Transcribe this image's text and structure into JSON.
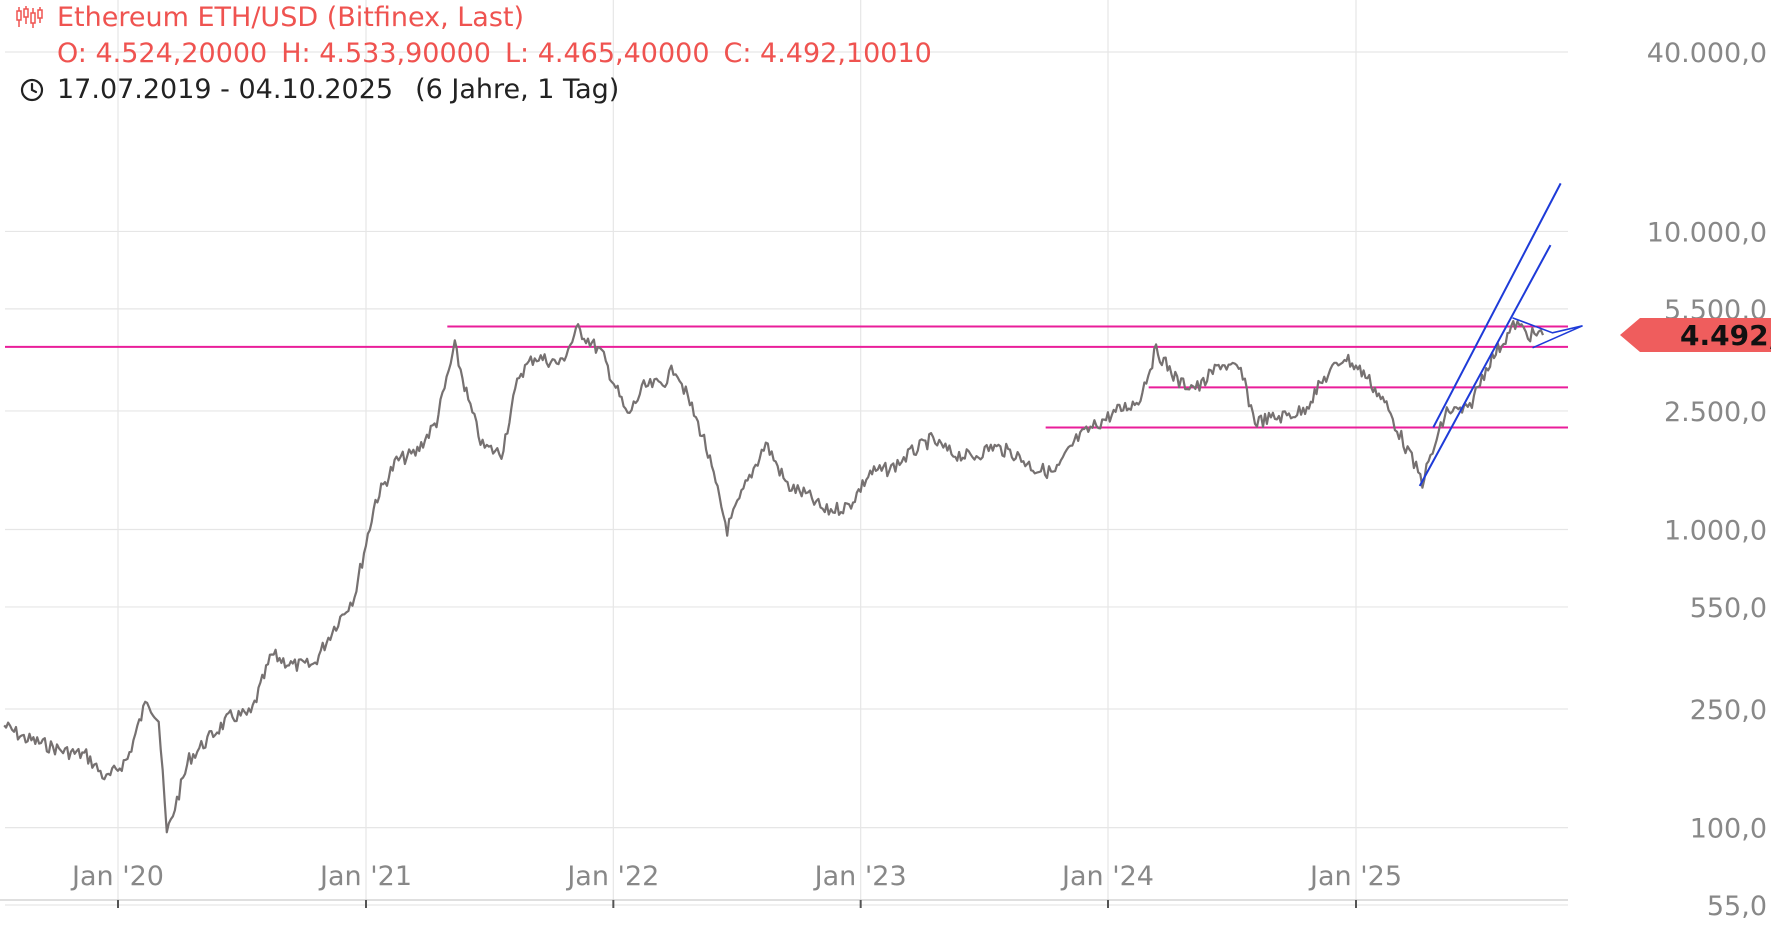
{
  "header": {
    "title": "Ethereum ETH/USD (Bitfinex, Last)",
    "ohlc": {
      "open": "O: 4.524,20000",
      "high": "H: 4.533,90000",
      "low": "L: 4.465,40000",
      "close": "C: 4.492,10010"
    },
    "date_range": "17.07.2019 - 04.10.2025",
    "period": "(6 Jahre, 1 Tag)",
    "candle_icon": "candlestick-icon",
    "clock_icon": "clock-icon"
  },
  "colors": {
    "price": "#767171",
    "header_text": "#ef5350",
    "support_resistance": "#e91e9a",
    "trend_channel": "#1e3bd8",
    "last_price_badge": "#ef5d5d",
    "grid": "#e6e6e6",
    "axis_text": "#888888"
  },
  "chart_data": {
    "type": "line",
    "title": "Ethereum ETH/USD (Bitfinex, Last)",
    "y_scale": "log",
    "ylim": [
      55,
      40000
    ],
    "xlim": [
      "2019-07-17",
      "2025-10-04"
    ],
    "grid": true,
    "y_ticks": [
      {
        "value": 40000,
        "label": "40.000,0"
      },
      {
        "value": 10000,
        "label": "10.000,0"
      },
      {
        "value": 5500,
        "label": "5.500,0"
      },
      {
        "value": 2500,
        "label": "2.500,0"
      },
      {
        "value": 1000,
        "label": "1.000,0"
      },
      {
        "value": 550,
        "label": "550,0"
      },
      {
        "value": 250,
        "label": "250,0"
      },
      {
        "value": 100,
        "label": "100,0"
      },
      {
        "value": 55,
        "label": "55,0"
      }
    ],
    "x_ticks": [
      {
        "date": "2020-01-01",
        "label": "Jan '20"
      },
      {
        "date": "2021-01-01",
        "label": "Jan '21"
      },
      {
        "date": "2022-01-01",
        "label": "Jan '22"
      },
      {
        "date": "2023-01-01",
        "label": "Jan '23"
      },
      {
        "date": "2024-01-01",
        "label": "Jan '24"
      },
      {
        "date": "2025-01-01",
        "label": "Jan '25"
      }
    ],
    "last_price": {
      "value": 4492.1,
      "label": "4.492,1"
    },
    "series": [
      {
        "x": [
          "2019-07-17",
          "2019-08-15",
          "2019-09-15",
          "2019-10-15",
          "2019-11-15",
          "2019-12-15",
          "2020-01-15",
          "2020-02-13",
          "2020-03-01",
          "2020-03-13",
          "2020-04-15",
          "2020-05-15",
          "2020-06-15",
          "2020-07-15",
          "2020-08-15",
          "2020-09-15",
          "2020-10-15",
          "2020-11-15",
          "2020-12-15",
          "2021-01-15",
          "2021-02-15",
          "2021-03-15",
          "2021-04-15",
          "2021-05-12",
          "2021-06-01",
          "2021-06-22",
          "2021-07-20",
          "2021-08-15",
          "2021-09-07",
          "2021-10-15",
          "2021-11-10",
          "2021-12-15",
          "2022-01-22",
          "2022-02-15",
          "2022-03-15",
          "2022-04-03",
          "2022-05-15",
          "2022-06-18",
          "2022-07-15",
          "2022-08-14",
          "2022-09-15",
          "2022-10-15",
          "2022-11-09",
          "2022-12-15",
          "2023-01-15",
          "2023-02-15",
          "2023-03-15",
          "2023-04-15",
          "2023-05-15",
          "2023-06-15",
          "2023-07-15",
          "2023-08-15",
          "2023-09-15",
          "2023-10-15",
          "2023-11-15",
          "2023-12-15",
          "2024-01-15",
          "2024-02-15",
          "2024-03-12",
          "2024-04-15",
          "2024-05-15",
          "2024-06-15",
          "2024-07-15",
          "2024-08-05",
          "2024-09-15",
          "2024-10-15",
          "2024-11-15",
          "2024-12-15",
          "2025-01-15",
          "2025-02-15",
          "2025-03-15",
          "2025-04-09",
          "2025-05-15",
          "2025-06-15",
          "2025-07-15",
          "2025-08-24",
          "2025-09-15",
          "2025-10-04"
        ],
        "y": [
          220,
          200,
          190,
          180,
          175,
          145,
          170,
          270,
          230,
          95,
          170,
          200,
          235,
          240,
          380,
          350,
          350,
          470,
          600,
          1250,
          1700,
          1800,
          2300,
          4100,
          2700,
          1900,
          1800,
          3300,
          3800,
          3600,
          4700,
          3900,
          2400,
          3000,
          3100,
          3500,
          2000,
          1000,
          1400,
          1950,
          1400,
          1300,
          1150,
          1200,
          1550,
          1600,
          1800,
          2000,
          1800,
          1750,
          1900,
          1800,
          1600,
          1550,
          2000,
          2250,
          2500,
          2700,
          4000,
          3100,
          3000,
          3600,
          3400,
          2300,
          2400,
          2500,
          3200,
          3800,
          3300,
          2600,
          1900,
          1450,
          2500,
          2500,
          3600,
          4900,
          4500,
          4492.1
        ]
      }
    ],
    "horizontal_levels": [
      4100,
      4800,
      3000,
      2200
    ],
    "trend_channel": [
      {
        "from": {
          "date": "2025-04-05",
          "value": 1400
        },
        "to": {
          "date": "2025-10-15",
          "value": 9000
        }
      },
      {
        "from": {
          "date": "2025-04-25",
          "value": 2200
        },
        "to": {
          "date": "2025-10-30",
          "value": 14500
        }
      }
    ]
  }
}
